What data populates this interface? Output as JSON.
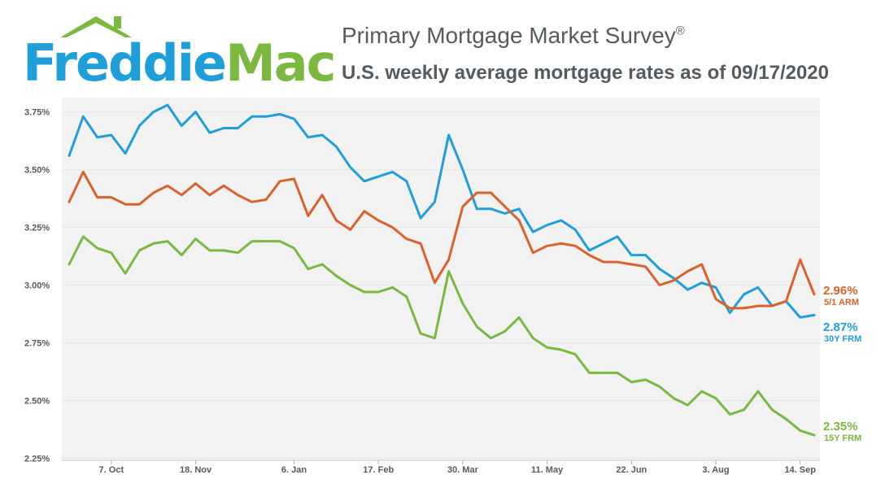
{
  "header": {
    "logo_part1": "Freddie",
    "logo_part2": "Mac",
    "survey_title": "Primary Mortgage Market Survey",
    "survey_mark": "®",
    "subtitle": "U.S. weekly average mortgage rates as of 09/17/2020"
  },
  "colors": {
    "frm30": "#1f9fd9",
    "arm51": "#d9622b",
    "frm15": "#7ab840",
    "plot_bg": "#f2f2f2",
    "grid": "#ffffff",
    "text": "#555a5e"
  },
  "chart_data": {
    "type": "line",
    "title": "U.S. weekly average mortgage rates as of 09/17/2020",
    "xlabel": "",
    "ylabel": "",
    "ylim": [
      2.25,
      3.8
    ],
    "y_ticks": [
      {
        "value": 3.75,
        "label": "3.75%"
      },
      {
        "value": 3.5,
        "label": "3.50%"
      },
      {
        "value": 3.25,
        "label": "3.25%"
      },
      {
        "value": 3.0,
        "label": "3.00%"
      },
      {
        "value": 2.75,
        "label": "2.75%"
      },
      {
        "value": 2.5,
        "label": "2.50%"
      },
      {
        "value": 2.25,
        "label": "2.25%"
      }
    ],
    "x_ticks": [
      {
        "index": 3,
        "label": "7. Oct"
      },
      {
        "index": 9,
        "label": "18. Nov"
      },
      {
        "index": 16,
        "label": "6. Jan"
      },
      {
        "index": 22,
        "label": "17. Feb"
      },
      {
        "index": 28,
        "label": "30. Mar"
      },
      {
        "index": 34,
        "label": "11. May"
      },
      {
        "index": 40,
        "label": "22. Jun"
      },
      {
        "index": 46,
        "label": "3. Aug"
      },
      {
        "index": 52,
        "label": "14. Sep"
      }
    ],
    "series": [
      {
        "name": "30Y FRM",
        "key": "frm30",
        "end_value": "2.87%",
        "end_label": "30Y FRM",
        "values": [
          3.56,
          3.73,
          3.64,
          3.65,
          3.57,
          3.69,
          3.75,
          3.78,
          3.69,
          3.75,
          3.66,
          3.68,
          3.68,
          3.73,
          3.73,
          3.74,
          3.72,
          3.64,
          3.65,
          3.6,
          3.51,
          3.45,
          3.47,
          3.49,
          3.45,
          3.29,
          3.36,
          3.65,
          3.5,
          3.33,
          3.33,
          3.31,
          3.33,
          3.23,
          3.26,
          3.28,
          3.24,
          3.15,
          3.18,
          3.21,
          3.13,
          3.13,
          3.07,
          3.03,
          2.98,
          3.01,
          2.99,
          2.88,
          2.96,
          2.99,
          2.91,
          2.93,
          2.86,
          2.87
        ]
      },
      {
        "name": "5/1 ARM",
        "key": "arm51",
        "end_value": "2.96%",
        "end_label": "5/1 ARM",
        "values": [
          3.36,
          3.49,
          3.38,
          3.38,
          3.35,
          3.35,
          3.4,
          3.43,
          3.39,
          3.44,
          3.39,
          3.43,
          3.39,
          3.36,
          3.37,
          3.45,
          3.46,
          3.3,
          3.39,
          3.28,
          3.24,
          3.32,
          3.28,
          3.25,
          3.2,
          3.18,
          3.01,
          3.11,
          3.34,
          3.4,
          3.4,
          3.34,
          3.28,
          3.14,
          3.17,
          3.18,
          3.17,
          3.13,
          3.1,
          3.1,
          3.09,
          3.08,
          3.0,
          3.02,
          3.06,
          3.09,
          2.94,
          2.9,
          2.9,
          2.91,
          2.91,
          2.93,
          3.11,
          2.96
        ]
      },
      {
        "name": "15Y FRM",
        "key": "frm15",
        "end_value": "2.35%",
        "end_label": "15Y FRM",
        "values": [
          3.09,
          3.21,
          3.16,
          3.14,
          3.05,
          3.15,
          3.18,
          3.19,
          3.13,
          3.2,
          3.15,
          3.15,
          3.14,
          3.19,
          3.19,
          3.19,
          3.16,
          3.07,
          3.09,
          3.04,
          3.0,
          2.97,
          2.97,
          2.99,
          2.95,
          2.79,
          2.77,
          3.06,
          2.92,
          2.82,
          2.77,
          2.8,
          2.86,
          2.77,
          2.73,
          2.72,
          2.7,
          2.62,
          2.62,
          2.62,
          2.58,
          2.59,
          2.56,
          2.51,
          2.48,
          2.54,
          2.51,
          2.44,
          2.46,
          2.54,
          2.46,
          2.42,
          2.37,
          2.35
        ]
      }
    ]
  }
}
